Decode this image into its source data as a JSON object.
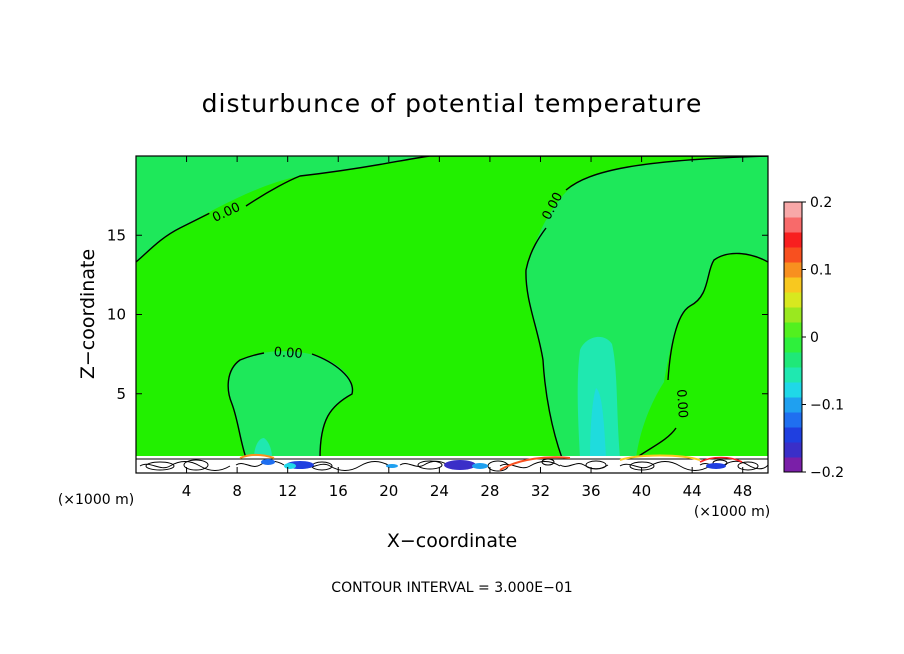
{
  "chart_data": {
    "type": "heatmap",
    "title": "disturbunce of potential temperature",
    "xlabel": "X−coordinate",
    "ylabel": "Z−coordinate",
    "x_unit": "(×1000 m)",
    "y_unit": "(×1000 m)",
    "xlim": [
      0,
      50
    ],
    "ylim": [
      0,
      20
    ],
    "xticks": [
      4,
      8,
      12,
      16,
      20,
      24,
      28,
      32,
      36,
      40,
      44,
      48
    ],
    "yticks": [
      5,
      10,
      15
    ],
    "colorbar": {
      "range": [
        -0.2,
        0.2
      ],
      "tick_values": [
        0.2,
        0.1,
        0,
        -0.1,
        -0.2
      ],
      "tick_labels": [
        "0.2",
        "0.1",
        "0",
        "−0.1",
        "−0.2"
      ],
      "colors": [
        "#7a1fa8",
        "#3a2fc8",
        "#1f3fe0",
        "#1f6ff0",
        "#1fa0f0",
        "#1fd8e8",
        "#1fe8b0",
        "#1fe878",
        "#2ef03c",
        "#52f01f",
        "#9ae81f",
        "#d8e81f",
        "#f8c81f",
        "#f8901f",
        "#f8501f",
        "#f81f1f",
        "#f86a6a",
        "#f8a8a8"
      ]
    },
    "contour_labels": [
      "0.00",
      "0.00",
      "0.00",
      "0.00"
    ],
    "contour_interval_text": "CONTOUR INTERVAL = 3.000E−01",
    "background_value": 0,
    "colors": {
      "field": "#22f000",
      "weak_negative": "#1fe880",
      "mid_negative": "#1fe8c8"
    }
  }
}
